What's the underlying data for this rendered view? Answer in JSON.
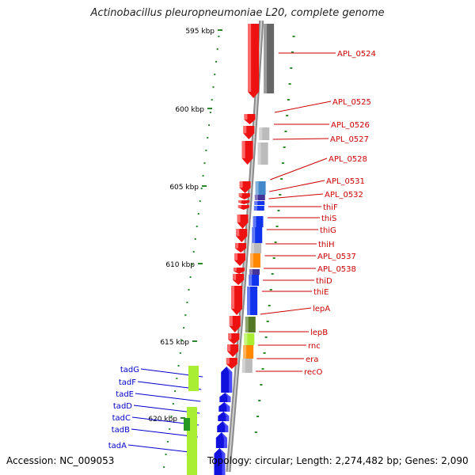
{
  "title": "Actinobacillus pleuropneumoniae L20, complete genome",
  "footer": {
    "accession": "Accession: NC_009053",
    "summary": "Topology: circular; Length: 2,274,482 bp; Genes: 2,090"
  },
  "colors": {
    "forward_gene": "#ee1111",
    "reverse_gene": "#1111dd",
    "forward_label": "#cc0000",
    "reverse_label": "#0000cc",
    "backbone": "#999999",
    "tick": "#2a8a2a"
  },
  "kbp_ticks": [
    "595 kbp",
    "600 kbp",
    "605 kbp",
    "610 kbp",
    "615 kbp",
    "620 kbp"
  ],
  "forward_genes": [
    {
      "label": "APL_0524",
      "cog_color": "#666666"
    },
    {
      "label": "APL_0525",
      "cog_color": ""
    },
    {
      "label": "APL_0526",
      "cog_color": "#bbbbbb"
    },
    {
      "label": "APL_0527",
      "cog_color": "#bbbbbb"
    },
    {
      "label": "APL_0528",
      "cog_color": "#4488cc"
    },
    {
      "label": "APL_0531",
      "cog_color": "#443399"
    },
    {
      "label": "APL_0532",
      "cog_color": "#1133ee"
    },
    {
      "label": "thiF",
      "cog_color": "#1133ee"
    },
    {
      "label": "thiS",
      "cog_color": "#1133ee"
    },
    {
      "label": "thiG",
      "cog_color": "#1133ee"
    },
    {
      "label": "thiH",
      "cog_color": "#bbbbbb"
    },
    {
      "label": "APL_0537",
      "cog_color": "#ff8800"
    },
    {
      "label": "APL_0538",
      "cog_color": "#443399"
    },
    {
      "label": "thiD",
      "cog_color": "#1133ee"
    },
    {
      "label": "thiE",
      "cog_color": "#1133ee"
    },
    {
      "label": "lepA",
      "cog_color": "#557722"
    },
    {
      "label": "lepB",
      "cog_color": "#aaee33"
    },
    {
      "label": "rnc",
      "cog_color": "#ff8800"
    },
    {
      "label": "era",
      "cog_color": "#bbbbbb"
    },
    {
      "label": "recO",
      "cog_color": "#ee3399"
    }
  ],
  "reverse_genes": [
    {
      "label": "tadG",
      "cog_color": "#aaee33"
    },
    {
      "label": "tadF",
      "cog_color": "#aaee33"
    },
    {
      "label": "tadE",
      "cog_color": ""
    },
    {
      "label": "tadD",
      "cog_color": ""
    },
    {
      "label": "tadC",
      "cog_color": "#229922"
    },
    {
      "label": "tadB",
      "cog_color": "#aaee33"
    },
    {
      "label": "tadA",
      "cog_color": "#aaee33"
    }
  ]
}
